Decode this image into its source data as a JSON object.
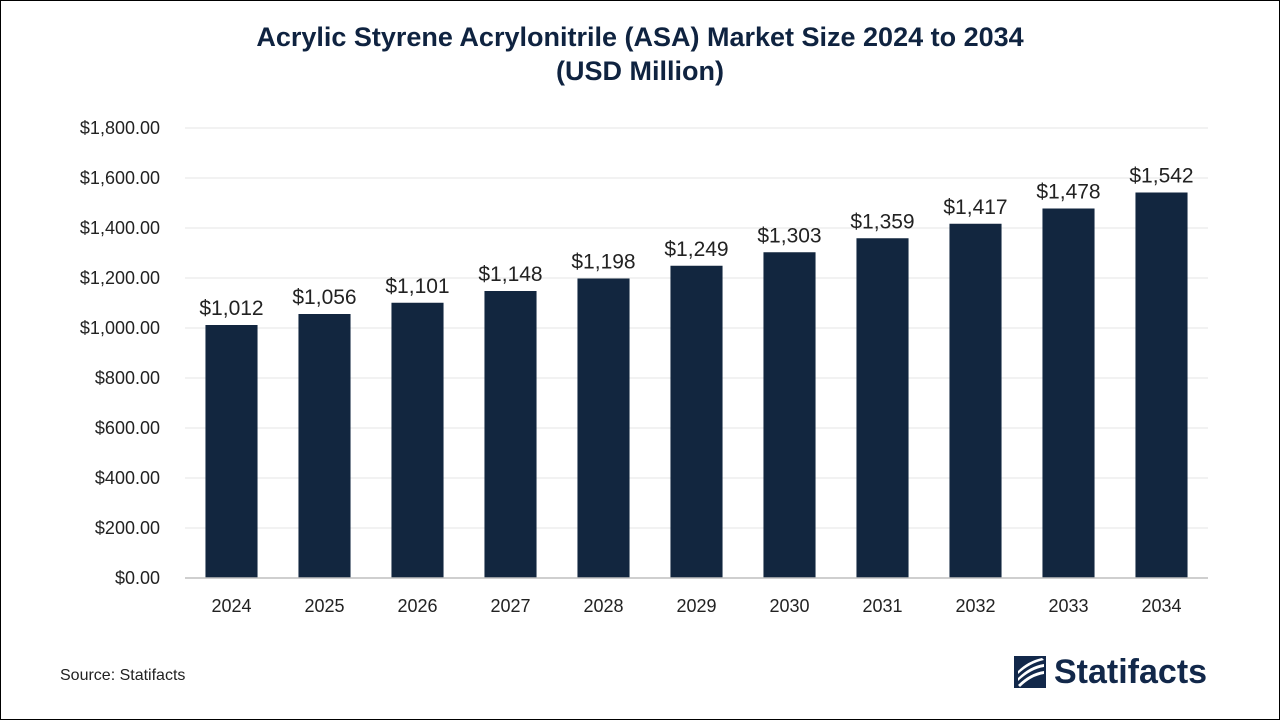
{
  "title": {
    "line1": "Acrylic Styrene Acrylonitrile (ASA) Market Size 2024 to 2034",
    "line2": "(USD Million)"
  },
  "source": "Source: Statifacts",
  "logo": {
    "text": "Statifacts",
    "icon": "statifacts-logo-icon"
  },
  "colors": {
    "bar": "#12263f",
    "title": "#0f2340",
    "grid": "#e6e6e6",
    "axis": "#bfbfbf",
    "text": "#222222"
  },
  "chart_data": {
    "type": "bar",
    "title": "Acrylic Styrene Acrylonitrile (ASA) Market Size 2024 to 2034 (USD Million)",
    "xlabel": "",
    "ylabel": "",
    "categories": [
      "2024",
      "2025",
      "2026",
      "2027",
      "2028",
      "2029",
      "2030",
      "2031",
      "2032",
      "2033",
      "2034"
    ],
    "values": [
      1012,
      1056,
      1101,
      1148,
      1198,
      1249,
      1303,
      1359,
      1417,
      1478,
      1542
    ],
    "data_labels": [
      "$1,012",
      "$1,056",
      "$1,101",
      "$1,148",
      "$1,198",
      "$1,249",
      "$1,303",
      "$1,359",
      "$1,417",
      "$1,478",
      "$1,542"
    ],
    "ylim": [
      0,
      1800
    ],
    "yticks": [
      0,
      200,
      400,
      600,
      800,
      1000,
      1200,
      1400,
      1600,
      1800
    ],
    "ytick_labels": [
      "$0.00",
      "$200.00",
      "$400.00",
      "$600.00",
      "$800.00",
      "$1,000.00",
      "$1,200.00",
      "$1,400.00",
      "$1,600.00",
      "$1,800.00"
    ],
    "grid": true,
    "legend": "none"
  }
}
